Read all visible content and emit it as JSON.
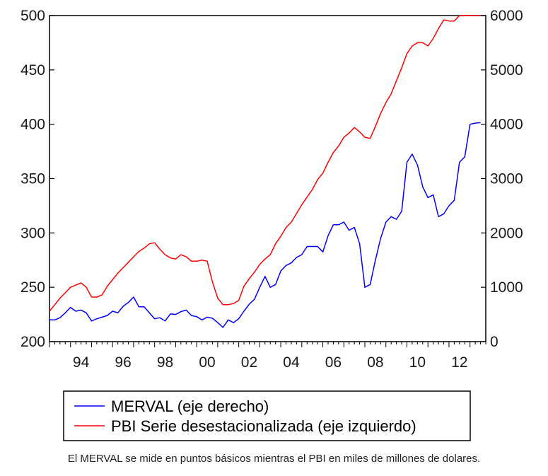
{
  "chart_data": {
    "type": "line",
    "x_tick_labels": [
      "94",
      "96",
      "98",
      "00",
      "02",
      "04",
      "06",
      "08",
      "10",
      "12"
    ],
    "x_tick_years": [
      1994,
      1996,
      1998,
      2000,
      2002,
      2004,
      2006,
      2008,
      2010,
      2012
    ],
    "xlim": [
      1993.0,
      2013.75
    ],
    "left_axis": {
      "ylim": [
        200,
        500
      ],
      "ticks": [
        200,
        250,
        300,
        350,
        400,
        450,
        500
      ]
    },
    "right_axis": {
      "ylim": [
        0,
        6000
      ],
      "ticks": [
        0,
        1000,
        2000,
        3000,
        4000,
        5000,
        6000
      ]
    },
    "grid": false,
    "legend_placement": "bottom",
    "series": [
      {
        "name": "MERVAL (eje derecho)",
        "axis": "right",
        "color": "#0000ff",
        "x": [
          1993.0,
          1993.25,
          1993.5,
          1993.75,
          1994.0,
          1994.25,
          1994.5,
          1994.75,
          1995.0,
          1995.25,
          1995.5,
          1995.75,
          1996.0,
          1996.25,
          1996.5,
          1996.75,
          1997.0,
          1997.25,
          1997.5,
          1997.75,
          1998.0,
          1998.25,
          1998.5,
          1998.75,
          1999.0,
          1999.25,
          1999.5,
          1999.75,
          2000.0,
          2000.25,
          2000.5,
          2000.75,
          2001.0,
          2001.25,
          2001.5,
          2001.75,
          2002.0,
          2002.25,
          2002.5,
          2002.75,
          2003.0,
          2003.25,
          2003.5,
          2003.75,
          2004.0,
          2004.25,
          2004.5,
          2004.75,
          2005.0,
          2005.25,
          2005.5,
          2005.75,
          2006.0,
          2006.25,
          2006.5,
          2006.75,
          2007.0,
          2007.25,
          2007.5,
          2007.75,
          2008.0,
          2008.25,
          2008.5,
          2008.75,
          2009.0,
          2009.25,
          2009.5,
          2009.75,
          2010.0,
          2010.25,
          2010.5,
          2010.75,
          2011.0,
          2011.25,
          2011.5,
          2011.75,
          2012.0,
          2012.25,
          2012.5,
          2012.75,
          2013.0,
          2013.25,
          2013.5
        ],
        "values": [
          400,
          400,
          440,
          530,
          630,
          560,
          580,
          530,
          380,
          420,
          450,
          480,
          560,
          530,
          650,
          720,
          820,
          640,
          640,
          530,
          420,
          440,
          380,
          510,
          500,
          550,
          580,
          480,
          460,
          400,
          450,
          430,
          350,
          260,
          400,
          350,
          420,
          560,
          690,
          780,
          1000,
          1200,
          1000,
          1050,
          1300,
          1400,
          1450,
          1550,
          1600,
          1750,
          1750,
          1750,
          1650,
          1950,
          2150,
          2150,
          2200,
          2050,
          2100,
          1800,
          1000,
          1050,
          1500,
          1900,
          2200,
          2300,
          2250,
          2400,
          3300,
          3450,
          3250,
          2850,
          2650,
          2700,
          2300,
          2350,
          2500,
          2600,
          3300,
          3400,
          4000,
          4020,
          4030
        ]
      },
      {
        "name": "PBI Serie desestacionalizada (eje izquierdo)",
        "axis": "left",
        "color": "#ff0000",
        "x": [
          1993.0,
          1993.25,
          1993.5,
          1993.75,
          1994.0,
          1994.25,
          1994.5,
          1994.75,
          1995.0,
          1995.25,
          1995.5,
          1995.75,
          1996.0,
          1996.25,
          1996.5,
          1996.75,
          1997.0,
          1997.25,
          1997.5,
          1997.75,
          1998.0,
          1998.25,
          1998.5,
          1998.75,
          1999.0,
          1999.25,
          1999.5,
          1999.75,
          2000.0,
          2000.25,
          2000.5,
          2000.75,
          2001.0,
          2001.25,
          2001.5,
          2001.75,
          2002.0,
          2002.25,
          2002.5,
          2002.75,
          2003.0,
          2003.25,
          2003.5,
          2003.75,
          2004.0,
          2004.25,
          2004.5,
          2004.75,
          2005.0,
          2005.25,
          2005.5,
          2005.75,
          2006.0,
          2006.25,
          2006.5,
          2006.75,
          2007.0,
          2007.25,
          2007.5,
          2007.75,
          2008.0,
          2008.25,
          2008.5,
          2008.75,
          2009.0,
          2009.25,
          2009.5,
          2009.75,
          2010.0,
          2010.25,
          2010.5,
          2010.75,
          2011.0,
          2011.25,
          2011.5,
          2011.75,
          2012.0,
          2012.25,
          2012.5,
          2012.75,
          2013.0,
          2013.25,
          2013.5
        ],
        "values": [
          228,
          234,
          240,
          245,
          250,
          252,
          254,
          250,
          241,
          241,
          243,
          251,
          257,
          263,
          268,
          273,
          278,
          283,
          286,
          290,
          291,
          285,
          280,
          277,
          276,
          280,
          278,
          274,
          274,
          275,
          274,
          255,
          240,
          234,
          234,
          235,
          238,
          251,
          258,
          264,
          271,
          276,
          280,
          290,
          297,
          305,
          310,
          318,
          326,
          333,
          340,
          349,
          355,
          365,
          374,
          380,
          388,
          392,
          397,
          393,
          388,
          387,
          398,
          410,
          420,
          428,
          440,
          452,
          465,
          472,
          475,
          475,
          472,
          479,
          488,
          496,
          495,
          495,
          500,
          500,
          500,
          500,
          500
        ]
      }
    ]
  },
  "legend": {
    "merval": "MERVAL (eje derecho)",
    "pbi": "PBI Serie desestacionalizada (eje izquierdo)"
  },
  "caption": "El MERVAL se mide en puntos básicos mientras el PBI en miles de millones de dolares."
}
